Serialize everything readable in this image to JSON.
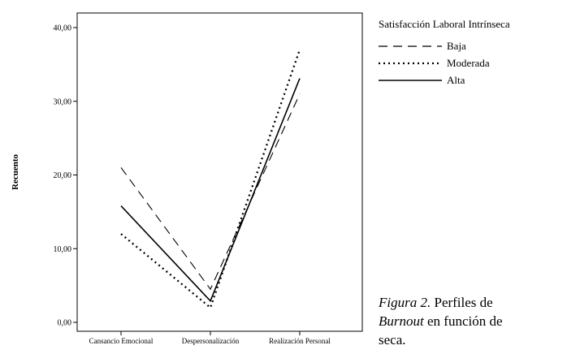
{
  "chart_data": {
    "type": "line",
    "categories": [
      "Cansancio Emocional",
      "Despersonalización",
      "Realización Personal"
    ],
    "series": [
      {
        "name": "Baja",
        "values": [
          21.0,
          4.5,
          31.0
        ],
        "dash": "dashed"
      },
      {
        "name": "Moderada",
        "values": [
          12.0,
          2.0,
          37.0
        ],
        "dash": "dotted"
      },
      {
        "name": "Alta",
        "values": [
          15.8,
          2.9,
          33.1
        ],
        "dash": "solid"
      }
    ],
    "title": "",
    "xlabel": "",
    "ylabel": "Recuento",
    "ylim": [
      0,
      40
    ],
    "yticks": [
      "0,00",
      "10,00",
      "20,00",
      "30,00",
      "40,00"
    ],
    "legend_title": "Satisfacción Laboral Intrínseca",
    "legend_placement": "right",
    "grid": false,
    "line_color": "#000000"
  },
  "caption": {
    "figure_label": "Figura 2.",
    "line1_rest": " Perfiles de",
    "line2_em": "Burnout",
    "line2_rest": " en función de",
    "line3": "seca."
  }
}
